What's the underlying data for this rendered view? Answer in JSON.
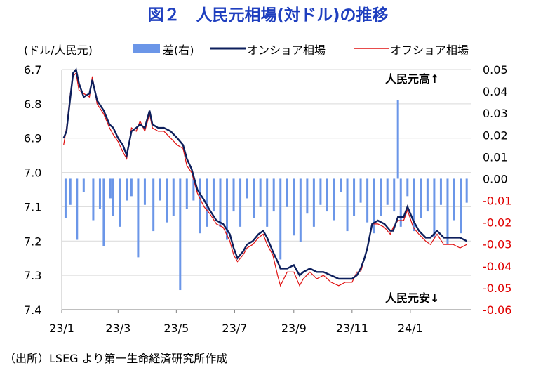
{
  "title": "図２　人民元相場(対ドル)の推移",
  "source": "（出所）LSEG より第一生命経済研究所作成",
  "chart_data": {
    "type": "line",
    "unit_label": "(ドル/人民元)",
    "legend": [
      {
        "name": "差(右)",
        "type": "bar",
        "color": "#6b96e8"
      },
      {
        "name": "オンショア相場",
        "type": "line",
        "color": "#0d1f5c"
      },
      {
        "name": "オフショア相場",
        "type": "line",
        "color": "#e01010"
      }
    ],
    "annotation_top": "人民元高↑",
    "annotation_bottom": "人民元安↓",
    "left_axis": {
      "ticks": [
        "6.7",
        "6.8",
        "6.9",
        "7.0",
        "7.1",
        "7.2",
        "7.3",
        "7.4"
      ],
      "ylim": [
        6.7,
        7.4
      ],
      "inverted": true
    },
    "right_axis": {
      "ticks": [
        "0.05",
        "0.04",
        "0.03",
        "0.02",
        "0.01",
        "0.00",
        "-0.01",
        "-0.02",
        "-0.03",
        "-0.04",
        "-0.05",
        "-0.06"
      ],
      "ylim": [
        -0.06,
        0.05
      ]
    },
    "x_ticks": [
      "23/1",
      "23/3",
      "23/5",
      "23/7",
      "23/9",
      "23/11",
      "24/1"
    ],
    "grid": "horizontal",
    "onshore": [
      [
        "2023-01-03",
        6.9
      ],
      [
        "2023-01-06",
        6.88
      ],
      [
        "2023-01-10",
        6.78
      ],
      [
        "2023-01-13",
        6.71
      ],
      [
        "2023-01-16",
        6.7
      ],
      [
        "2023-01-19",
        6.74
      ],
      [
        "2023-01-24",
        6.78
      ],
      [
        "2023-01-30",
        6.77
      ],
      [
        "2023-02-02",
        6.73
      ],
      [
        "2023-02-07",
        6.79
      ],
      [
        "2023-02-14",
        6.82
      ],
      [
        "2023-02-20",
        6.86
      ],
      [
        "2023-02-24",
        6.87
      ],
      [
        "2023-03-01",
        6.9
      ],
      [
        "2023-03-06",
        6.92
      ],
      [
        "2023-03-10",
        6.95
      ],
      [
        "2023-03-15",
        6.88
      ],
      [
        "2023-03-20",
        6.87
      ],
      [
        "2023-03-24",
        6.86
      ],
      [
        "2023-03-29",
        6.87
      ],
      [
        "2023-04-03",
        6.82
      ],
      [
        "2023-04-06",
        6.86
      ],
      [
        "2023-04-12",
        6.87
      ],
      [
        "2023-04-18",
        6.87
      ],
      [
        "2023-04-25",
        6.88
      ],
      [
        "2023-05-02",
        6.9
      ],
      [
        "2023-05-08",
        6.92
      ],
      [
        "2023-05-12",
        6.96
      ],
      [
        "2023-05-17",
        6.99
      ],
      [
        "2023-05-23",
        7.05
      ],
      [
        "2023-05-30",
        7.08
      ],
      [
        "2023-06-05",
        7.11
      ],
      [
        "2023-06-12",
        7.14
      ],
      [
        "2023-06-19",
        7.15
      ],
      [
        "2023-06-26",
        7.18
      ],
      [
        "2023-06-30",
        7.22
      ],
      [
        "2023-07-04",
        7.25
      ],
      [
        "2023-07-10",
        7.23
      ],
      [
        "2023-07-14",
        7.21
      ],
      [
        "2023-07-20",
        7.2
      ],
      [
        "2023-07-26",
        7.18
      ],
      [
        "2023-07-31",
        7.17
      ],
      [
        "2023-08-04",
        7.19
      ],
      [
        "2023-08-10",
        7.23
      ],
      [
        "2023-08-15",
        7.26
      ],
      [
        "2023-08-18",
        7.28
      ],
      [
        "2023-08-25",
        7.28
      ],
      [
        "2023-09-01",
        7.27
      ],
      [
        "2023-09-07",
        7.3
      ],
      [
        "2023-09-11",
        7.29
      ],
      [
        "2023-09-18",
        7.28
      ],
      [
        "2023-09-25",
        7.29
      ],
      [
        "2023-10-02",
        7.29
      ],
      [
        "2023-10-10",
        7.3
      ],
      [
        "2023-10-18",
        7.31
      ],
      [
        "2023-10-25",
        7.31
      ],
      [
        "2023-11-01",
        7.31
      ],
      [
        "2023-11-06",
        7.3
      ],
      [
        "2023-11-10",
        7.28
      ],
      [
        "2023-11-14",
        7.25
      ],
      [
        "2023-11-17",
        7.22
      ],
      [
        "2023-11-22",
        7.15
      ],
      [
        "2023-11-28",
        7.14
      ],
      [
        "2023-12-05",
        7.15
      ],
      [
        "2023-12-11",
        7.17
      ],
      [
        "2023-12-14",
        7.17
      ],
      [
        "2023-12-19",
        7.13
      ],
      [
        "2023-12-25",
        7.13
      ],
      [
        "2023-12-29",
        7.1
      ],
      [
        "2024-01-04",
        7.14
      ],
      [
        "2024-01-10",
        7.17
      ],
      [
        "2024-01-17",
        7.19
      ],
      [
        "2024-01-22",
        7.19
      ],
      [
        "2024-01-29",
        7.17
      ],
      [
        "2024-02-05",
        7.19
      ],
      [
        "2024-02-15",
        7.19
      ],
      [
        "2024-02-22",
        7.19
      ],
      [
        "2024-02-29",
        7.2
      ]
    ],
    "offshore": [
      [
        "2023-01-03",
        6.92
      ],
      [
        "2023-01-06",
        6.87
      ],
      [
        "2023-01-10",
        6.77
      ],
      [
        "2023-01-13",
        6.72
      ],
      [
        "2023-01-16",
        6.71
      ],
      [
        "2023-01-19",
        6.76
      ],
      [
        "2023-01-24",
        6.77
      ],
      [
        "2023-01-30",
        6.78
      ],
      [
        "2023-02-02",
        6.72
      ],
      [
        "2023-02-07",
        6.8
      ],
      [
        "2023-02-14",
        6.83
      ],
      [
        "2023-02-20",
        6.87
      ],
      [
        "2023-02-24",
        6.89
      ],
      [
        "2023-03-01",
        6.91
      ],
      [
        "2023-03-06",
        6.94
      ],
      [
        "2023-03-10",
        6.96
      ],
      [
        "2023-03-15",
        6.87
      ],
      [
        "2023-03-20",
        6.88
      ],
      [
        "2023-03-24",
        6.85
      ],
      [
        "2023-03-29",
        6.88
      ],
      [
        "2023-04-03",
        6.83
      ],
      [
        "2023-04-06",
        6.87
      ],
      [
        "2023-04-12",
        6.88
      ],
      [
        "2023-04-18",
        6.88
      ],
      [
        "2023-04-25",
        6.9
      ],
      [
        "2023-05-02",
        6.92
      ],
      [
        "2023-05-08",
        6.93
      ],
      [
        "2023-05-12",
        6.98
      ],
      [
        "2023-05-17",
        7.0
      ],
      [
        "2023-05-23",
        7.06
      ],
      [
        "2023-05-30",
        7.1
      ],
      [
        "2023-06-05",
        7.12
      ],
      [
        "2023-06-12",
        7.15
      ],
      [
        "2023-06-19",
        7.16
      ],
      [
        "2023-06-26",
        7.2
      ],
      [
        "2023-06-30",
        7.24
      ],
      [
        "2023-07-04",
        7.26
      ],
      [
        "2023-07-10",
        7.24
      ],
      [
        "2023-07-14",
        7.22
      ],
      [
        "2023-07-20",
        7.21
      ],
      [
        "2023-07-26",
        7.19
      ],
      [
        "2023-07-31",
        7.18
      ],
      [
        "2023-08-04",
        7.21
      ],
      [
        "2023-08-10",
        7.24
      ],
      [
        "2023-08-15",
        7.3
      ],
      [
        "2023-08-18",
        7.33
      ],
      [
        "2023-08-25",
        7.29
      ],
      [
        "2023-09-01",
        7.29
      ],
      [
        "2023-09-07",
        7.33
      ],
      [
        "2023-09-11",
        7.31
      ],
      [
        "2023-09-18",
        7.29
      ],
      [
        "2023-09-25",
        7.31
      ],
      [
        "2023-10-02",
        7.3
      ],
      [
        "2023-10-10",
        7.32
      ],
      [
        "2023-10-18",
        7.33
      ],
      [
        "2023-10-25",
        7.32
      ],
      [
        "2023-11-01",
        7.32
      ],
      [
        "2023-11-06",
        7.29
      ],
      [
        "2023-11-10",
        7.29
      ],
      [
        "2023-11-14",
        7.25
      ],
      [
        "2023-11-17",
        7.22
      ],
      [
        "2023-11-22",
        7.15
      ],
      [
        "2023-11-28",
        7.15
      ],
      [
        "2023-12-05",
        7.16
      ],
      [
        "2023-12-11",
        7.18
      ],
      [
        "2023-12-14",
        7.16
      ],
      [
        "2023-12-19",
        7.14
      ],
      [
        "2023-12-25",
        7.14
      ],
      [
        "2023-12-29",
        7.11
      ],
      [
        "2024-01-04",
        7.16
      ],
      [
        "2024-01-10",
        7.18
      ],
      [
        "2024-01-17",
        7.2
      ],
      [
        "2024-01-22",
        7.21
      ],
      [
        "2024-01-29",
        7.18
      ],
      [
        "2024-02-05",
        7.21
      ],
      [
        "2024-02-15",
        7.21
      ],
      [
        "2024-02-22",
        7.22
      ],
      [
        "2024-02-29",
        7.21
      ]
    ],
    "diff": [
      [
        "2023-01-05",
        -0.018
      ],
      [
        "2023-01-10",
        -0.012
      ],
      [
        "2023-01-17",
        -0.028
      ],
      [
        "2023-01-24",
        -0.006
      ],
      [
        "2023-02-03",
        -0.019
      ],
      [
        "2023-02-10",
        -0.014
      ],
      [
        "2023-02-14",
        -0.031
      ],
      [
        "2023-02-21",
        -0.009
      ],
      [
        "2023-02-24",
        -0.017
      ],
      [
        "2023-03-03",
        -0.022
      ],
      [
        "2023-03-10",
        -0.01
      ],
      [
        "2023-03-15",
        -0.008
      ],
      [
        "2023-03-22",
        -0.036
      ],
      [
        "2023-03-29",
        -0.012
      ],
      [
        "2023-04-07",
        -0.024
      ],
      [
        "2023-04-14",
        -0.01
      ],
      [
        "2023-04-21",
        -0.02
      ],
      [
        "2023-04-28",
        -0.017
      ],
      [
        "2023-05-05",
        -0.051
      ],
      [
        "2023-05-12",
        -0.014
      ],
      [
        "2023-05-19",
        -0.01
      ],
      [
        "2023-05-26",
        -0.025
      ],
      [
        "2023-06-02",
        -0.022
      ],
      [
        "2023-06-09",
        -0.015
      ],
      [
        "2023-06-16",
        -0.022
      ],
      [
        "2023-06-23",
        -0.028
      ],
      [
        "2023-06-30",
        -0.015
      ],
      [
        "2023-07-07",
        -0.022
      ],
      [
        "2023-07-14",
        -0.009
      ],
      [
        "2023-07-21",
        -0.018
      ],
      [
        "2023-07-28",
        -0.013
      ],
      [
        "2023-08-04",
        -0.022
      ],
      [
        "2023-08-11",
        -0.015
      ],
      [
        "2023-08-18",
        -0.037
      ],
      [
        "2023-08-25",
        -0.013
      ],
      [
        "2023-09-01",
        -0.026
      ],
      [
        "2023-09-08",
        -0.029
      ],
      [
        "2023-09-15",
        -0.016
      ],
      [
        "2023-09-22",
        -0.022
      ],
      [
        "2023-09-29",
        -0.012
      ],
      [
        "2023-10-06",
        -0.015
      ],
      [
        "2023-10-13",
        -0.019
      ],
      [
        "2023-10-20",
        -0.006
      ],
      [
        "2023-10-27",
        -0.024
      ],
      [
        "2023-11-03",
        -0.017
      ],
      [
        "2023-11-10",
        -0.011
      ],
      [
        "2023-11-17",
        -0.02
      ],
      [
        "2023-11-24",
        -0.025
      ],
      [
        "2023-12-01",
        -0.017
      ],
      [
        "2023-12-08",
        -0.012
      ],
      [
        "2023-12-15",
        -0.015
      ],
      [
        "2023-12-19",
        0.036
      ],
      [
        "2023-12-22",
        -0.022
      ],
      [
        "2023-12-29",
        -0.008
      ],
      [
        "2024-01-05",
        -0.024
      ],
      [
        "2024-01-12",
        -0.018
      ],
      [
        "2024-01-19",
        -0.015
      ],
      [
        "2024-01-26",
        -0.027
      ],
      [
        "2024-02-02",
        -0.012
      ],
      [
        "2024-02-09",
        -0.03
      ],
      [
        "2024-02-16",
        -0.019
      ],
      [
        "2024-02-23",
        -0.025
      ],
      [
        "2024-02-29",
        -0.011
      ]
    ]
  }
}
